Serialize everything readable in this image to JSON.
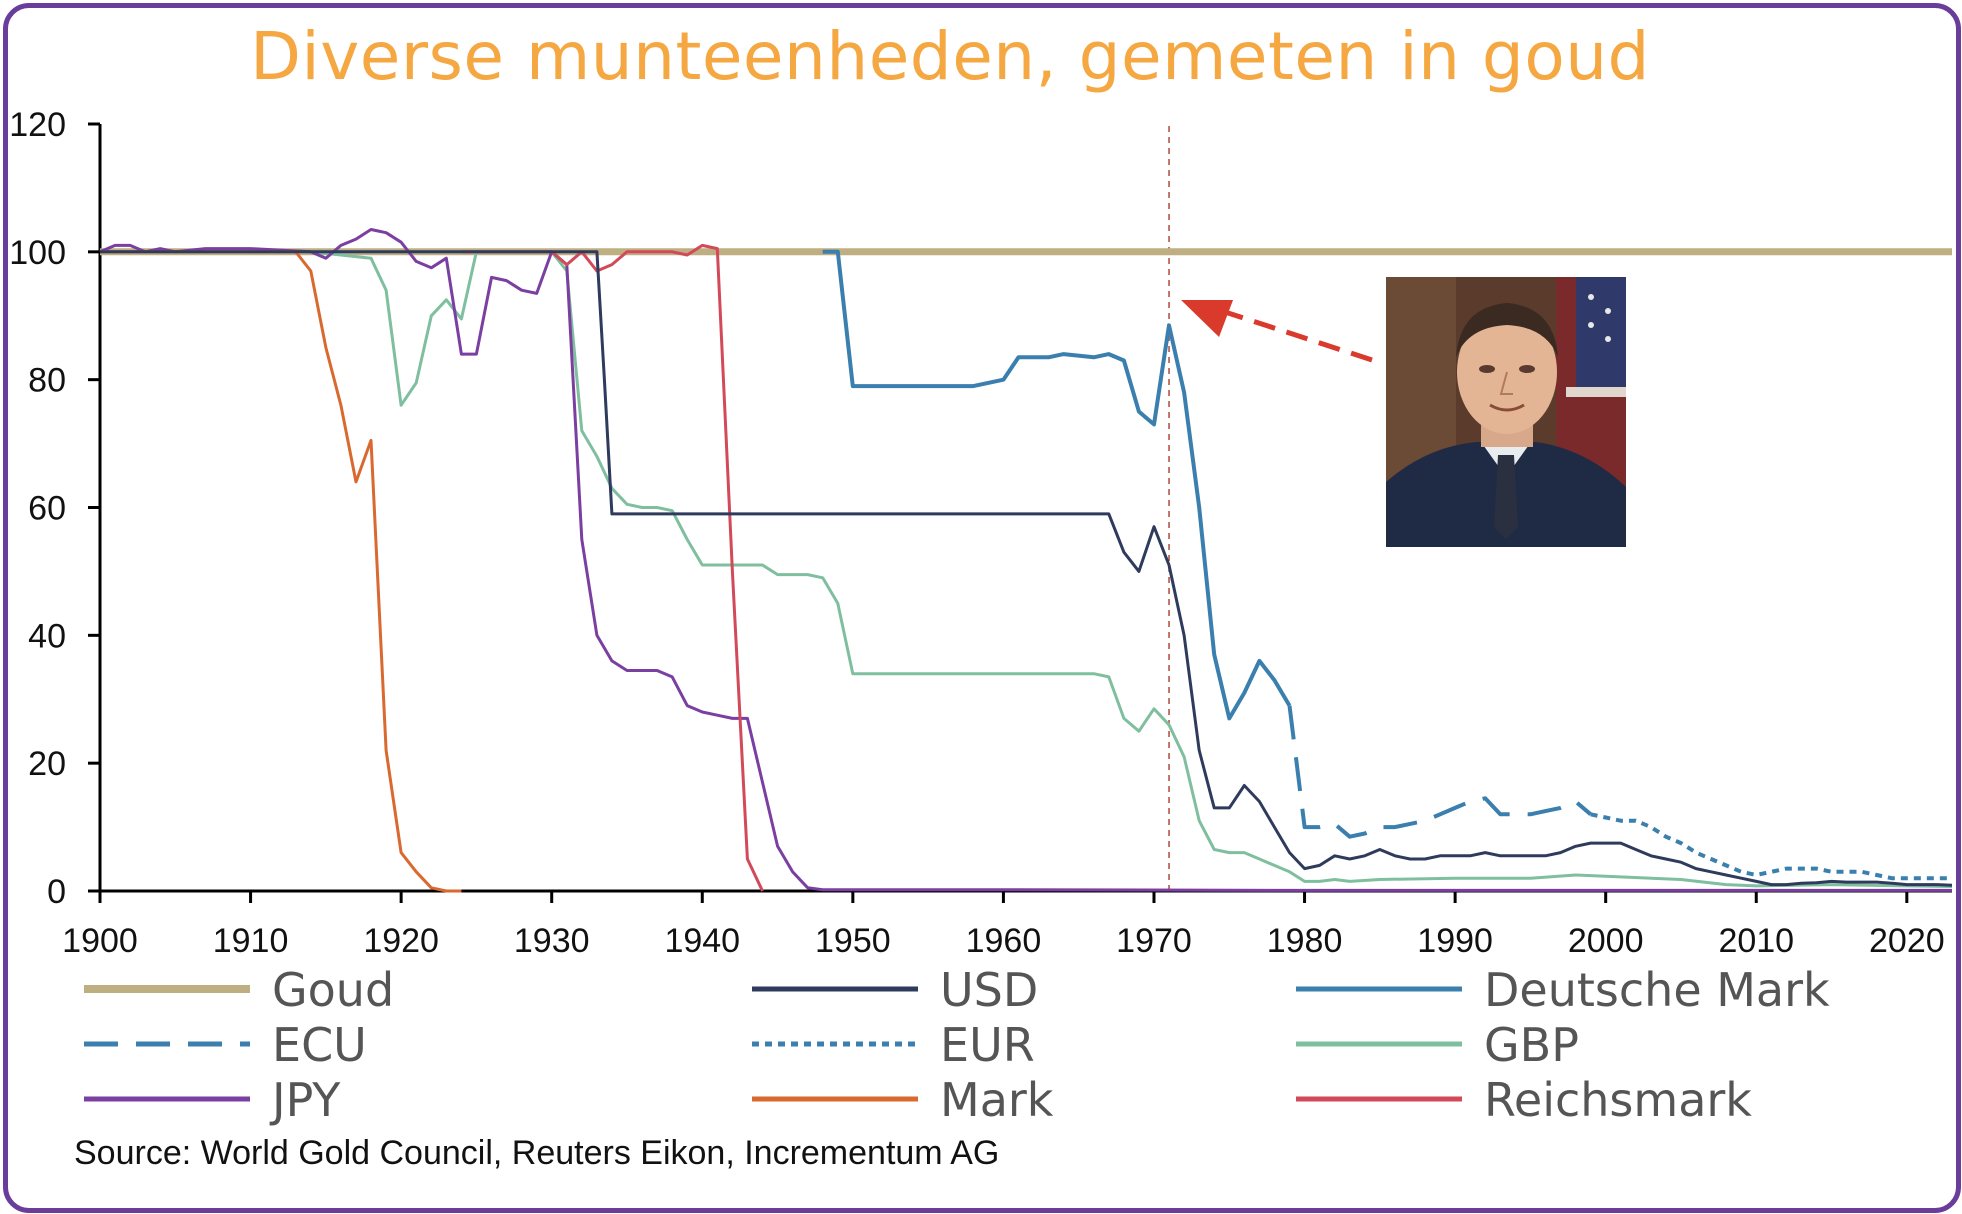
{
  "title": "Diverse munteenheden, gemeten in goud",
  "source": "Source: World Gold Council, Reuters Eikon, Incrementum AG",
  "chart_data": {
    "type": "line",
    "title": "Diverse munteenheden, gemeten in goud",
    "xlabel": "",
    "ylabel": "",
    "xlim": [
      1900,
      2023
    ],
    "ylim": [
      0,
      120
    ],
    "x_ticks": [
      1900,
      1910,
      1920,
      1930,
      1940,
      1950,
      1960,
      1970,
      1980,
      1990,
      2000,
      2010,
      2020
    ],
    "y_ticks": [
      0,
      20,
      40,
      60,
      80,
      100,
      120
    ],
    "grid": false,
    "legend_position": "bottom",
    "annotations": [
      {
        "type": "vertical-dashed-line",
        "x": 1971,
        "color": "#b04a3a"
      },
      {
        "type": "arrow",
        "points_to_x": 1971,
        "color": "#d93a2b",
        "label": ""
      },
      {
        "type": "portrait-photo"
      }
    ],
    "series": [
      {
        "name": "Goud",
        "color": "#bfae82",
        "style": "solid",
        "width": 7,
        "points": [
          [
            1900,
            100
          ],
          [
            2023,
            100
          ]
        ]
      },
      {
        "name": "USD",
        "color": "#2f3b5c",
        "style": "solid",
        "width": 3,
        "points": [
          [
            1900,
            100
          ],
          [
            1913,
            100
          ],
          [
            1933,
            100
          ],
          [
            1933.5,
            80
          ],
          [
            1934,
            59
          ],
          [
            1950,
            59
          ],
          [
            1967,
            59
          ],
          [
            1968,
            53
          ],
          [
            1969,
            50
          ],
          [
            1970,
            57
          ],
          [
            1971,
            51
          ],
          [
            1972,
            40
          ],
          [
            1973,
            22
          ],
          [
            1974,
            13
          ],
          [
            1975,
            13
          ],
          [
            1976,
            16.5
          ],
          [
            1977,
            14
          ],
          [
            1978,
            10
          ],
          [
            1979,
            6
          ],
          [
            1980,
            3.5
          ],
          [
            1981,
            4
          ],
          [
            1982,
            5.5
          ],
          [
            1983,
            5
          ],
          [
            1984,
            5.5
          ],
          [
            1985,
            6.5
          ],
          [
            1986,
            5.5
          ],
          [
            1987,
            5
          ],
          [
            1988,
            5
          ],
          [
            1989,
            5.5
          ],
          [
            1990,
            5.5
          ],
          [
            1991,
            5.5
          ],
          [
            1992,
            6
          ],
          [
            1993,
            5.5
          ],
          [
            1994,
            5.5
          ],
          [
            1995,
            5.5
          ],
          [
            1996,
            5.5
          ],
          [
            1997,
            6
          ],
          [
            1998,
            7
          ],
          [
            1999,
            7.5
          ],
          [
            2000,
            7.5
          ],
          [
            2001,
            7.5
          ],
          [
            2002,
            6.5
          ],
          [
            2003,
            5.5
          ],
          [
            2004,
            5
          ],
          [
            2005,
            4.5
          ],
          [
            2006,
            3.5
          ],
          [
            2007,
            3
          ],
          [
            2008,
            2.5
          ],
          [
            2009,
            2
          ],
          [
            2010,
            1.5
          ],
          [
            2011,
            1
          ],
          [
            2012,
            1
          ],
          [
            2013,
            1.2
          ],
          [
            2014,
            1.3
          ],
          [
            2015,
            1.5
          ],
          [
            2016,
            1.4
          ],
          [
            2017,
            1.4
          ],
          [
            2018,
            1.4
          ],
          [
            2019,
            1.2
          ],
          [
            2020,
            1
          ],
          [
            2021,
            1
          ],
          [
            2022,
            1
          ],
          [
            2023,
            0.9
          ]
        ]
      },
      {
        "name": "Deutsche Mark",
        "color": "#3a7fae",
        "style": "solid",
        "width": 4,
        "points": [
          [
            1948,
            100
          ],
          [
            1949,
            100
          ],
          [
            1950,
            79
          ],
          [
            1955,
            79
          ],
          [
            1958,
            79
          ],
          [
            1960,
            80
          ],
          [
            1961,
            83.5
          ],
          [
            1963,
            83.5
          ],
          [
            1964,
            84
          ],
          [
            1966,
            83.5
          ],
          [
            1967,
            84
          ],
          [
            1968,
            83
          ],
          [
            1969,
            75
          ],
          [
            1970,
            73
          ],
          [
            1971,
            88.5
          ],
          [
            1972,
            78
          ],
          [
            1973,
            60
          ],
          [
            1974,
            37
          ],
          [
            1975,
            27
          ],
          [
            1976,
            31
          ],
          [
            1977,
            36
          ],
          [
            1978,
            33
          ],
          [
            1979,
            29
          ]
        ]
      },
      {
        "name": "ECU",
        "color": "#3a7fae",
        "style": "longdash",
        "width": 4,
        "points": [
          [
            1979,
            29
          ],
          [
            1980,
            10
          ],
          [
            1981,
            10
          ],
          [
            1982,
            10.5
          ],
          [
            1983,
            8.5
          ],
          [
            1984,
            9
          ],
          [
            1985,
            10
          ],
          [
            1986,
            10
          ],
          [
            1987,
            10.5
          ],
          [
            1988,
            11
          ],
          [
            1989,
            12
          ],
          [
            1990,
            13
          ],
          [
            1991,
            14
          ],
          [
            1992,
            14.5
          ],
          [
            1993,
            12
          ],
          [
            1994,
            12
          ],
          [
            1995,
            12
          ],
          [
            1996,
            12.5
          ],
          [
            1997,
            13
          ],
          [
            1998,
            14
          ],
          [
            1999,
            12
          ]
        ]
      },
      {
        "name": "EUR",
        "color": "#3a7fae",
        "style": "dotted",
        "width": 4,
        "points": [
          [
            1999,
            12
          ],
          [
            2000,
            11.5
          ],
          [
            2001,
            11
          ],
          [
            2002,
            11
          ],
          [
            2003,
            10
          ],
          [
            2004,
            8.5
          ],
          [
            2005,
            7.5
          ],
          [
            2006,
            6
          ],
          [
            2007,
            5
          ],
          [
            2008,
            4
          ],
          [
            2009,
            3
          ],
          [
            2010,
            2.5
          ],
          [
            2011,
            3
          ],
          [
            2012,
            3.5
          ],
          [
            2013,
            3.5
          ],
          [
            2014,
            3.5
          ],
          [
            2015,
            3
          ],
          [
            2016,
            3
          ],
          [
            2017,
            3
          ],
          [
            2018,
            2.5
          ],
          [
            2019,
            2
          ],
          [
            2020,
            2
          ],
          [
            2021,
            2
          ],
          [
            2022,
            2
          ],
          [
            2023,
            2
          ]
        ]
      },
      {
        "name": "GBP",
        "color": "#7fbf9f",
        "style": "solid",
        "width": 3,
        "points": [
          [
            1900,
            100
          ],
          [
            1914,
            100
          ],
          [
            1918,
            99
          ],
          [
            1919,
            94
          ],
          [
            1920,
            76
          ],
          [
            1921,
            79.5
          ],
          [
            1922,
            90
          ],
          [
            1923,
            92.5
          ],
          [
            1924,
            89.5
          ],
          [
            1925,
            100
          ],
          [
            1930,
            100
          ],
          [
            1931,
            97
          ],
          [
            1932,
            72
          ],
          [
            1933,
            68
          ],
          [
            1934,
            63
          ],
          [
            1935,
            60.5
          ],
          [
            1936,
            60
          ],
          [
            1937,
            60
          ],
          [
            1938,
            59.5
          ],
          [
            1939,
            55
          ],
          [
            1940,
            51
          ],
          [
            1944,
            51
          ],
          [
            1945,
            49.5
          ],
          [
            1947,
            49.5
          ],
          [
            1948,
            49
          ],
          [
            1949,
            45
          ],
          [
            1950,
            34
          ],
          [
            1955,
            34
          ],
          [
            1966,
            34
          ],
          [
            1967,
            33.5
          ],
          [
            1968,
            27
          ],
          [
            1969,
            25
          ],
          [
            1970,
            28.5
          ],
          [
            1971,
            26
          ],
          [
            1972,
            21
          ],
          [
            1973,
            11
          ],
          [
            1974,
            6.5
          ],
          [
            1975,
            6
          ],
          [
            1976,
            6
          ],
          [
            1977,
            5
          ],
          [
            1978,
            4
          ],
          [
            1979,
            3
          ],
          [
            1980,
            1.5
          ],
          [
            1981,
            1.5
          ],
          [
            1982,
            1.8
          ],
          [
            1983,
            1.5
          ],
          [
            1985,
            1.8
          ],
          [
            1990,
            2
          ],
          [
            1995,
            2
          ],
          [
            1998,
            2.5
          ],
          [
            2000,
            2.3
          ],
          [
            2005,
            1.8
          ],
          [
            2008,
            1
          ],
          [
            2010,
            0.8
          ],
          [
            2015,
            1
          ],
          [
            2020,
            0.8
          ],
          [
            2023,
            0.7
          ]
        ]
      },
      {
        "name": "JPY",
        "color": "#7a3fa0",
        "style": "solid",
        "width": 3,
        "points": [
          [
            1900,
            100
          ],
          [
            1901,
            101
          ],
          [
            1902,
            101
          ],
          [
            1903,
            100
          ],
          [
            1904,
            100.5
          ],
          [
            1905,
            100
          ],
          [
            1907,
            100.5
          ],
          [
            1910,
            100.5
          ],
          [
            1914,
            100
          ],
          [
            1915,
            99
          ],
          [
            1916,
            101
          ],
          [
            1917,
            102
          ],
          [
            1918,
            103.5
          ],
          [
            1919,
            103
          ],
          [
            1920,
            101.5
          ],
          [
            1921,
            98.5
          ],
          [
            1922,
            97.5
          ],
          [
            1923,
            99
          ],
          [
            1924,
            84
          ],
          [
            1925,
            84
          ],
          [
            1926,
            96
          ],
          [
            1927,
            95.5
          ],
          [
            1928,
            94
          ],
          [
            1929,
            93.5
          ],
          [
            1930,
            100
          ],
          [
            1931,
            98
          ],
          [
            1932,
            55
          ],
          [
            1933,
            40
          ],
          [
            1934,
            36
          ],
          [
            1935,
            34.5
          ],
          [
            1936,
            34.5
          ],
          [
            1937,
            34.5
          ],
          [
            1938,
            33.5
          ],
          [
            1939,
            29
          ],
          [
            1940,
            28
          ],
          [
            1941,
            27.5
          ],
          [
            1942,
            27
          ],
          [
            1943,
            27
          ],
          [
            1944,
            17
          ],
          [
            1945,
            7
          ],
          [
            1946,
            3
          ],
          [
            1947,
            0.5
          ],
          [
            1948,
            0.2
          ],
          [
            1960,
            0.2
          ],
          [
            1980,
            0.1
          ],
          [
            2023,
            0.1
          ]
        ]
      },
      {
        "name": "Mark",
        "color": "#d9692f",
        "style": "solid",
        "width": 3,
        "points": [
          [
            1900,
            100
          ],
          [
            1913,
            100
          ],
          [
            1914,
            97
          ],
          [
            1915,
            85
          ],
          [
            1916,
            76
          ],
          [
            1917,
            64
          ],
          [
            1918,
            70.5
          ],
          [
            1919,
            22
          ],
          [
            1920,
            6
          ],
          [
            1921,
            3
          ],
          [
            1922,
            0.5
          ],
          [
            1923,
            0
          ],
          [
            1924,
            0
          ]
        ]
      },
      {
        "name": "Reichsmark",
        "color": "#d24a5a",
        "style": "solid",
        "width": 3,
        "points": [
          [
            1924,
            100
          ],
          [
            1930,
            100
          ],
          [
            1931,
            98
          ],
          [
            1932,
            100
          ],
          [
            1933,
            97
          ],
          [
            1934,
            98
          ],
          [
            1935,
            100
          ],
          [
            1936,
            100
          ],
          [
            1937,
            100
          ],
          [
            1938,
            100
          ],
          [
            1939,
            99.5
          ],
          [
            1940,
            101
          ],
          [
            1941,
            100.5
          ],
          [
            1942,
            50
          ],
          [
            1943,
            5
          ],
          [
            1944,
            0
          ]
        ]
      }
    ]
  }
}
